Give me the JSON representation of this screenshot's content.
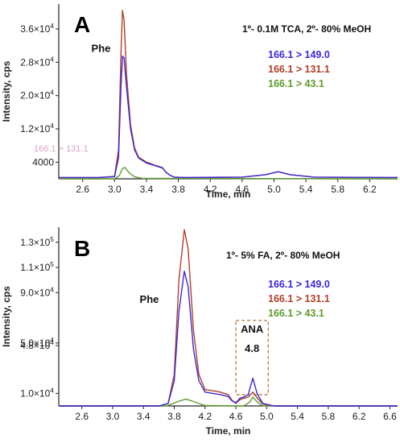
{
  "colors": {
    "blue": "#3a28d8",
    "brown": "#b0402a",
    "green": "#5f9a2e",
    "axis": "#222222",
    "box": "#b06a2a"
  },
  "chart_data": [
    {
      "type": "line",
      "panel_label": "A",
      "condition": "1º- 0.1M TCA, 2º- 80% MeOH",
      "xlabel": "Time, min",
      "ylabel": "Intensity, cps",
      "xlim": [
        2.3,
        6.55
      ],
      "ylim": [
        0,
        42000
      ],
      "x_ticks": [
        2.6,
        3.0,
        3.4,
        3.8,
        4.2,
        4.6,
        5.0,
        5.4,
        5.8,
        6.2
      ],
      "x_tick_labels": [
        "2.6",
        "3.0",
        "3.4",
        "3.8",
        "4.2",
        "4.6",
        "5.0",
        "5.4",
        "5.8",
        "6.2"
      ],
      "y_ticks": [
        4000,
        12000,
        20000,
        28000,
        36000
      ],
      "y_tick_labels": [
        {
          "base": "4000",
          "exp": ""
        },
        {
          "base": "1.2×10",
          "exp": "4"
        },
        {
          "base": "2.0×10",
          "exp": "4"
        },
        {
          "base": "2.8×10",
          "exp": "4"
        },
        {
          "base": "3.6×10",
          "exp": "4"
        }
      ],
      "ghost_text": "166.1 > 131.1",
      "annotations": [
        {
          "text": "Phe",
          "x": 2.95,
          "y": 30500
        }
      ],
      "grid": false,
      "legend_position": "top-right",
      "series": [
        {
          "name": "166.1 > 149.0",
          "color": "blue",
          "x": [
            2.3,
            2.8,
            3.0,
            3.05,
            3.08,
            3.1,
            3.12,
            3.15,
            3.2,
            3.25,
            3.3,
            3.4,
            3.5,
            3.6,
            3.65,
            3.7,
            3.75,
            3.9,
            4.6,
            4.9,
            5.05,
            5.2,
            5.5,
            6.55
          ],
          "y": [
            300,
            300,
            500,
            5000,
            22000,
            29500,
            29000,
            22000,
            12000,
            7000,
            5000,
            3800,
            3200,
            2600,
            1500,
            800,
            400,
            300,
            400,
            1000,
            1700,
            1000,
            400,
            300
          ]
        },
        {
          "name": "166.1 > 131.1",
          "color": "brown",
          "x": [
            2.3,
            2.8,
            3.0,
            3.05,
            3.08,
            3.1,
            3.12,
            3.15,
            3.2,
            3.25,
            3.3,
            3.4,
            3.5,
            3.6,
            3.65,
            3.7,
            3.75,
            3.9,
            4.6,
            4.9,
            5.05,
            5.2,
            5.5,
            6.55
          ],
          "y": [
            300,
            300,
            600,
            7000,
            30000,
            40500,
            38000,
            25000,
            13000,
            7500,
            5200,
            4000,
            3300,
            2700,
            1500,
            800,
            400,
            300,
            400,
            1000,
            1700,
            1000,
            400,
            300
          ]
        },
        {
          "name": "166.1 > 43.1",
          "color": "green",
          "x": [
            2.3,
            3.0,
            3.06,
            3.1,
            3.13,
            3.18,
            3.25,
            3.35,
            6.55
          ],
          "y": [
            0,
            0,
            800,
            2500,
            2700,
            1500,
            500,
            100,
            0
          ]
        }
      ]
    },
    {
      "type": "line",
      "panel_label": "B",
      "condition": "1º- 5% FA, 2º- 80% MeOH",
      "xlabel": "Time, min",
      "ylabel": "Intensity, cps",
      "xlim": [
        2.3,
        6.7
      ],
      "ylim": [
        0,
        142000
      ],
      "x_ticks": [
        2.6,
        3.0,
        3.4,
        3.8,
        4.2,
        4.6,
        5.0,
        5.4,
        5.8,
        6.2,
        6.6
      ],
      "x_tick_labels": [
        "2.6",
        "3.0",
        "3.4",
        "3.8",
        "4.2",
        "4.6",
        "5.0",
        "5.4",
        "5.8",
        "6.2",
        "6.6"
      ],
      "y_ticks": [
        10000,
        48000,
        50000,
        90000,
        110000,
        130000
      ],
      "y_tick_labels": [
        {
          "base": "1.0×10",
          "exp": "4"
        },
        {
          "base": "4.8×10",
          "exp": "4"
        },
        {
          "base": "5.0×10",
          "exp": "4"
        },
        {
          "base": "9.0×10",
          "exp": "4"
        },
        {
          "base": "1.1×10",
          "exp": "5"
        },
        {
          "base": "1.3×10",
          "exp": "5"
        }
      ],
      "annotations": [
        {
          "text": "Phe",
          "x": 3.6,
          "y": 82000
        }
      ],
      "highlight_box": {
        "label": "ANA",
        "sublabel": "4.8",
        "x_range": [
          4.6,
          5.02
        ],
        "y_range": [
          0,
          50000
        ]
      },
      "grid": false,
      "legend_position": "right",
      "series": [
        {
          "name": "166.1 > 149.0",
          "color": "blue",
          "x": [
            2.3,
            3.6,
            3.72,
            3.8,
            3.86,
            3.93,
            3.98,
            4.05,
            4.12,
            4.2,
            4.3,
            4.4,
            4.5,
            4.55,
            4.6,
            4.65,
            4.7,
            4.76,
            4.82,
            4.88,
            4.95,
            5.1,
            6.7
          ],
          "y": [
            0,
            0,
            2000,
            20000,
            75000,
            107000,
            95000,
            45000,
            20000,
            11000,
            10000,
            9000,
            7500,
            4000,
            2500,
            6000,
            7000,
            9000,
            22000,
            9000,
            2000,
            0,
            0
          ]
        },
        {
          "name": "166.1 > 131.1",
          "color": "brown",
          "x": [
            2.3,
            3.6,
            3.72,
            3.8,
            3.86,
            3.93,
            3.98,
            4.05,
            4.12,
            4.2,
            4.3,
            4.4,
            4.5,
            4.55,
            4.6,
            4.65,
            4.7,
            4.76,
            4.82,
            4.88,
            4.95,
            5.1,
            6.7
          ],
          "y": [
            0,
            0,
            2000,
            25000,
            100000,
            140000,
            125000,
            60000,
            25000,
            13000,
            12000,
            11000,
            9000,
            4500,
            2000,
            5000,
            6000,
            7000,
            11000,
            6000,
            1500,
            0,
            0
          ]
        },
        {
          "name": "166.1 > 43.1",
          "color": "green",
          "x": [
            2.3,
            3.7,
            3.85,
            3.95,
            4.05,
            4.2,
            4.7,
            4.78,
            4.82,
            4.88,
            4.95,
            6.7
          ],
          "y": [
            0,
            0,
            3500,
            5500,
            3500,
            300,
            0,
            3000,
            7000,
            3000,
            0,
            0
          ]
        }
      ]
    }
  ]
}
